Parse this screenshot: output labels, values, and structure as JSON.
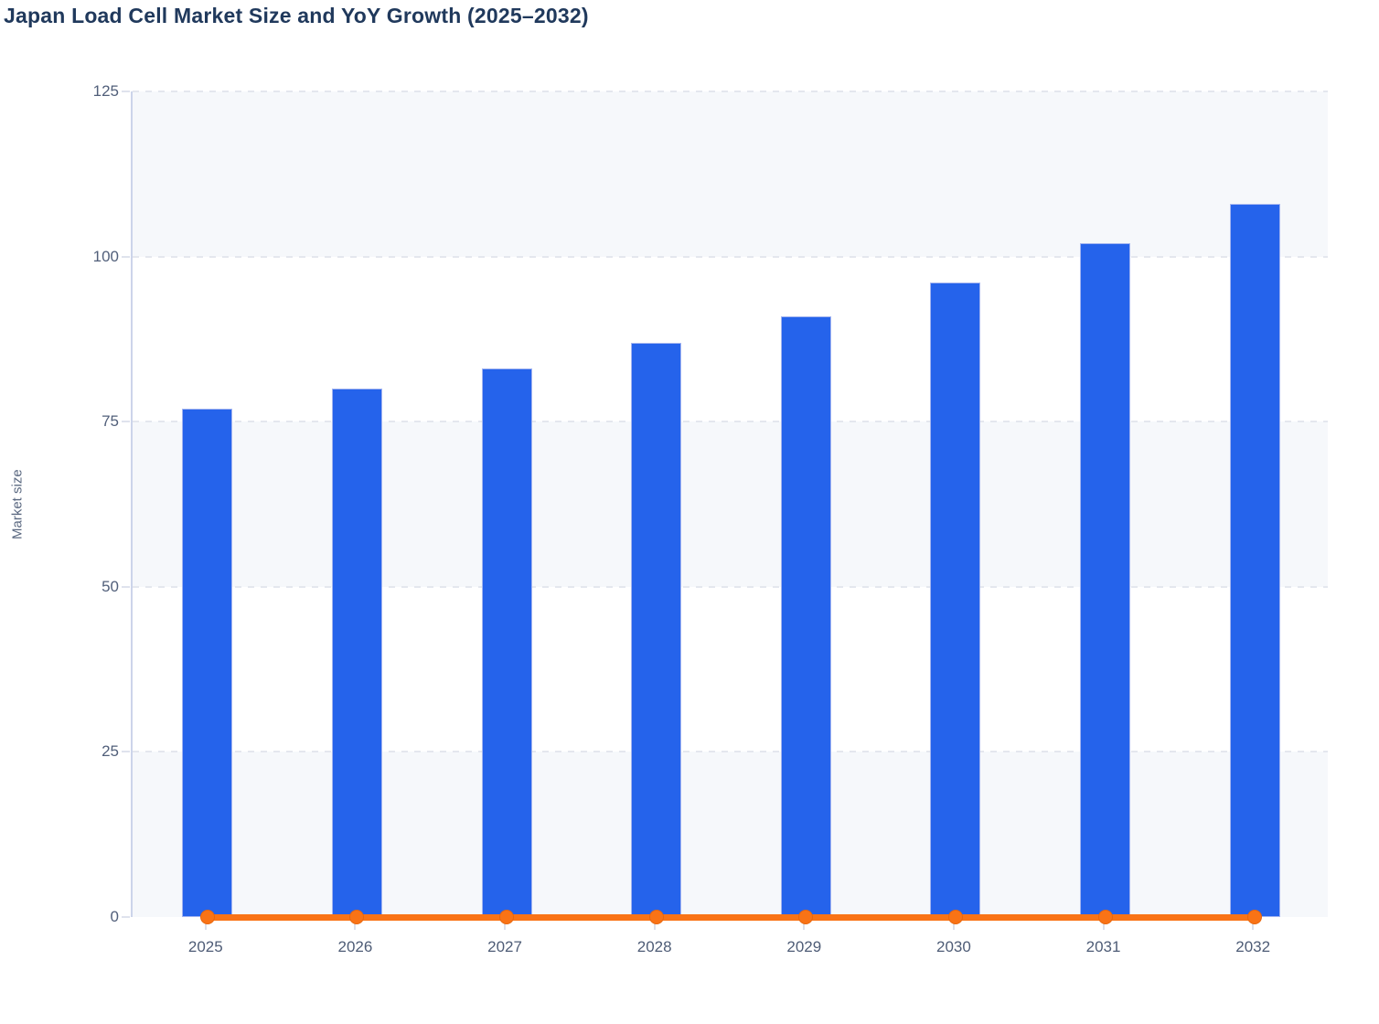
{
  "header": {
    "title": "Japan Load Cell Market Size and YoY Growth (2025–2032)"
  },
  "chart_data": {
    "type": "bar",
    "title": "Japan Load Cell Market Size and YoY Growth (2025–2032)",
    "categories": [
      "2025",
      "2026",
      "2027",
      "2028",
      "2029",
      "2030",
      "2031",
      "2032"
    ],
    "series": [
      {
        "name": "Market size",
        "type": "bar",
        "color": "#2563eb",
        "values": [
          77,
          80,
          83,
          87,
          91,
          96,
          102,
          108
        ]
      },
      {
        "name": "YoY growth",
        "type": "line",
        "color": "#f97316",
        "values": [
          0,
          0,
          0,
          0,
          0,
          0,
          0,
          0
        ],
        "note": "rendered flat along the zero baseline with a round marker at every year"
      }
    ],
    "xlabel": "",
    "ylabel": "Market size",
    "ylim": [
      0,
      125
    ],
    "yticks": [
      0,
      25,
      50,
      75,
      100,
      125
    ],
    "grid": "dashed horizontal gridlines at every y tick",
    "plot_bands": "alternating light horizontal bands between gridlines",
    "band_color": "#f6f8fb",
    "legend": "none"
  }
}
